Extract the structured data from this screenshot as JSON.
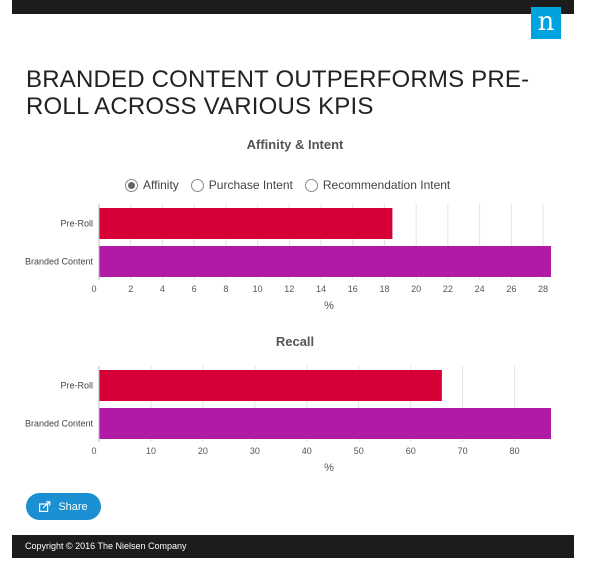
{
  "brand": {
    "logo_letter": "n",
    "logo_color": "#00a3e0"
  },
  "headline": "BRANDED CONTENT OUTPERFORMS PRE-ROLL ACROSS VARIOUS KPIS",
  "legend": [
    {
      "label": "Affinity",
      "selected": true
    },
    {
      "label": "Purchase Intent",
      "selected": false
    },
    {
      "label": "Recommendation Intent",
      "selected": false
    }
  ],
  "share": {
    "label": "Share",
    "icon": "share-icon"
  },
  "footer": {
    "copyright": "Copyright © 2016 The Nielsen Company"
  },
  "chart_data": [
    {
      "type": "bar",
      "orientation": "horizontal",
      "title": "Affinity & Intent",
      "categories": [
        "Pre-Roll",
        "Branded Content"
      ],
      "values": [
        18.5,
        28.5
      ],
      "colors": [
        "#d60036",
        "#b01aa5"
      ],
      "xlabel": "%",
      "xlim": [
        0,
        28.5
      ],
      "ticks": [
        0,
        2,
        4,
        6,
        8,
        10,
        12,
        14,
        16,
        18,
        20,
        22,
        24,
        26,
        28
      ],
      "grid": true
    },
    {
      "type": "bar",
      "orientation": "horizontal",
      "title": "Recall",
      "categories": [
        "Pre-Roll",
        "Branded Content"
      ],
      "values": [
        66,
        87
      ],
      "colors": [
        "#d60036",
        "#b01aa5"
      ],
      "xlabel": "%",
      "xlim": [
        0,
        87
      ],
      "ticks": [
        0,
        10,
        20,
        30,
        40,
        50,
        60,
        70,
        80
      ],
      "grid": true
    }
  ]
}
